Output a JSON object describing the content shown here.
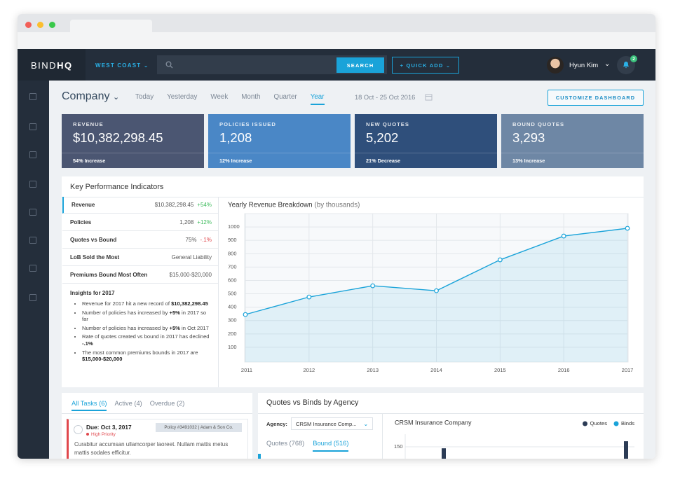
{
  "header": {
    "brand_light": "BIND",
    "brand_bold": "HQ",
    "region": "WEST COAST",
    "search_button": "SEARCH",
    "quick_add": "+ QUICK ADD",
    "user_name": "Hyun Kim",
    "notifications": "2"
  },
  "toolbar": {
    "scope": "Company",
    "periods": [
      "Today",
      "Yesterday",
      "Week",
      "Month",
      "Quarter",
      "Year"
    ],
    "active_period": 5,
    "date_range": "18 Oct - 25 Oct 2016",
    "customize_button": "CUSTOMIZE DASHBOARD"
  },
  "stat_cards": [
    {
      "label": "REVENUE",
      "value": "$10,382,298.45",
      "footer": "54% Increase",
      "color": "#4b5672"
    },
    {
      "label": "POLICIES ISSUED",
      "value": "1,208",
      "footer": "12% Increase",
      "color": "#4a87c6"
    },
    {
      "label": "NEW QUOTES",
      "value": "5,202",
      "footer": "21% Decrease",
      "color": "#2f4f7b"
    },
    {
      "label": "BOUND QUOTES",
      "value": "3,293",
      "footer": "13% Increase",
      "color": "#6e87a5"
    }
  ],
  "kpi": {
    "title": "Key Performance Indicators",
    "rows": [
      {
        "label": "Revenue",
        "value": "$10,382,298.45",
        "change": "+54%",
        "trend": "up"
      },
      {
        "label": "Policies",
        "value": "1,208",
        "change": "+12%",
        "trend": "up"
      },
      {
        "label": "Quotes vs Bound",
        "value": "75%",
        "change": "-.1%",
        "trend": "down"
      },
      {
        "label": "LoB Sold the Most",
        "value": "General Liability"
      },
      {
        "label": "Premiums Bound Most Often",
        "value": "$15,000-$20,000"
      }
    ],
    "insights_title": "Insights for 2017",
    "insights": [
      [
        {
          "text": "Revenue for 2017 hit a new record of ",
          "bold": false
        },
        {
          "text": "$10,382,298.45",
          "bold": true
        }
      ],
      [
        {
          "text": "Number of policies has increased by ",
          "bold": false
        },
        {
          "text": "+5%",
          "bold": true
        },
        {
          "text": " in 2017 so far",
          "bold": false
        }
      ],
      [
        {
          "text": "Number of policies has increased by ",
          "bold": false
        },
        {
          "text": "+5%",
          "bold": true
        },
        {
          "text": " in Oct 2017",
          "bold": false
        }
      ],
      [
        {
          "text": "Rate of quotes created vs bound in 2017 has declined ",
          "bold": false
        },
        {
          "text": "-.1%",
          "bold": true
        }
      ],
      [
        {
          "text": "The most common premiums bounds in 2017 are ",
          "bold": false
        },
        {
          "text": "$15,000-$20,000",
          "bold": true
        }
      ]
    ]
  },
  "tasks": {
    "tabs": [
      "All Tasks (6)",
      "Active (4)",
      "Overdue (2)"
    ],
    "active_tab": 0,
    "items": [
      {
        "due": "Due: Oct 3, 2017",
        "priority": "High Priority",
        "tag": "Policy #3491032 | Adam & Son Co.",
        "body": "Curabitur accumsan ullamcorper laoreet. Nullam mattis metus mattis sodales efficitur."
      }
    ]
  },
  "agency": {
    "title": "Quotes vs Binds by Agency",
    "agency_label": "Agency:",
    "agency_value": "CRSM Insurance Comp...",
    "tabs": [
      "Quotes (768)",
      "Bound (516)"
    ],
    "active_tab": 1
  },
  "chart_data": [
    {
      "type": "line",
      "title": "Yearly Revenue Breakdown",
      "subtitle": "(by thousands)",
      "categories": [
        "2011",
        "2012",
        "2013",
        "2014",
        "2015",
        "2016",
        "2017"
      ],
      "values": [
        345,
        476,
        560,
        523,
        754,
        932,
        990
      ],
      "color": "#1aa3d9",
      "area": true,
      "ylim": [
        0,
        1100
      ],
      "yticks": [
        100,
        200,
        300,
        400,
        500,
        600,
        700,
        800,
        900,
        1000
      ],
      "grid": true
    },
    {
      "type": "bar",
      "title": "CRSM Insurance Company",
      "categories": [
        null,
        null
      ],
      "series": [
        {
          "name": "Quotes",
          "color": "#2b3b55",
          "values": [
            144,
            172
          ]
        },
        {
          "name": "Binds",
          "color": "#1aa3d9",
          "values": [
            null,
            null
          ]
        }
      ],
      "ylim": [
        0,
        200
      ],
      "yticks": [
        150
      ],
      "grid": true,
      "legend": "top-right"
    }
  ]
}
